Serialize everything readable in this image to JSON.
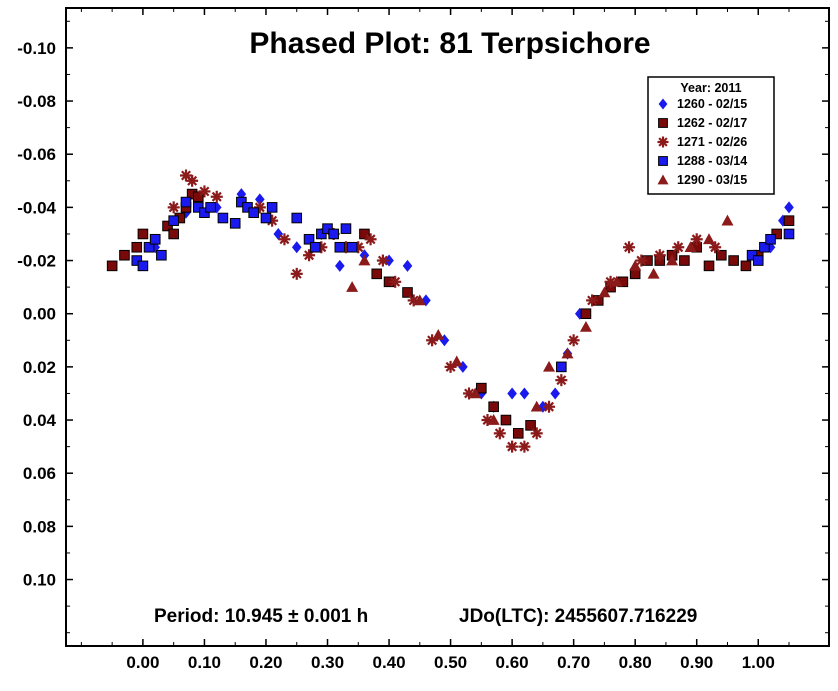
{
  "chart_data": {
    "type": "scatter",
    "title": "Phased Plot: 81 Terpsichore",
    "xlabel": "",
    "ylabel": "",
    "xlim": [
      -0.125,
      1.115
    ],
    "ylim": [
      0.125,
      -0.115
    ],
    "y_inverted": true,
    "grid": false,
    "x_ticks": [
      0.0,
      0.1,
      0.2,
      0.3,
      0.4,
      0.5,
      0.6,
      0.7,
      0.8,
      0.9,
      1.0
    ],
    "x_tick_labels": [
      "0.00",
      "0.10",
      "0.20",
      "0.30",
      "0.40",
      "0.50",
      "0.60",
      "0.70",
      "0.80",
      "0.90",
      "1.00"
    ],
    "y_ticks": [
      -0.1,
      -0.08,
      -0.06,
      -0.04,
      -0.02,
      0.0,
      0.02,
      0.04,
      0.06,
      0.08,
      0.1
    ],
    "y_tick_labels": [
      "-0.10",
      "-0.08",
      "-0.06",
      "-0.04",
      "-0.02",
      "0.00",
      "0.02",
      "0.04",
      "0.06",
      "0.08",
      "0.10"
    ],
    "legend": {
      "placement": "top-right",
      "title": "Year: 2011",
      "entries": [
        "1260 - 02/15",
        "1262 - 02/17",
        "1271 - 02/26",
        "1288 - 03/14",
        "1290 - 03/15"
      ]
    },
    "series": [
      {
        "name": "1260 - 02/15",
        "marker": "diamond",
        "color": "#1a1aee",
        "x": [
          0.02,
          0.07,
          0.12,
          0.16,
          0.19,
          0.22,
          0.25,
          0.29,
          0.32,
          0.36,
          0.4,
          0.43,
          0.46,
          0.49,
          0.52,
          0.55,
          0.57,
          0.6,
          0.62,
          0.65,
          0.67,
          0.69,
          0.71,
          1.02,
          1.04,
          1.05
        ],
        "y": [
          -0.025,
          -0.038,
          -0.04,
          -0.045,
          -0.043,
          -0.03,
          -0.025,
          -0.03,
          -0.018,
          -0.022,
          -0.02,
          -0.018,
          -0.005,
          0.01,
          0.02,
          0.03,
          0.035,
          0.03,
          0.03,
          0.035,
          0.03,
          0.015,
          0.0,
          -0.025,
          -0.035,
          -0.04
        ]
      },
      {
        "name": "1262 - 02/17",
        "marker": "square",
        "color": "#7a0a0a",
        "x": [
          -0.05,
          -0.03,
          -0.01,
          0.0,
          0.02,
          0.04,
          0.05,
          0.06,
          0.07,
          0.08,
          0.09,
          0.36,
          0.38,
          0.4,
          0.43,
          0.55,
          0.57,
          0.59,
          0.61,
          0.63,
          0.72,
          0.74,
          0.76,
          0.78,
          0.8,
          0.82,
          0.84,
          0.86,
          0.88,
          0.9,
          0.92,
          0.94,
          0.96,
          0.98,
          1.0,
          1.03,
          1.05
        ],
        "y": [
          -0.018,
          -0.022,
          -0.025,
          -0.03,
          -0.028,
          -0.033,
          -0.03,
          -0.036,
          -0.04,
          -0.045,
          -0.044,
          -0.03,
          -0.015,
          -0.012,
          -0.008,
          0.028,
          0.035,
          0.04,
          0.045,
          0.042,
          0.0,
          -0.005,
          -0.01,
          -0.012,
          -0.015,
          -0.02,
          -0.02,
          -0.022,
          -0.02,
          -0.025,
          -0.018,
          -0.022,
          -0.02,
          -0.018,
          -0.022,
          -0.03,
          -0.035
        ]
      },
      {
        "name": "1271 - 02/26",
        "marker": "asterisk",
        "color": "#8b1a1a",
        "x": [
          0.05,
          0.07,
          0.08,
          0.1,
          0.12,
          0.19,
          0.21,
          0.23,
          0.25,
          0.27,
          0.29,
          0.31,
          0.33,
          0.35,
          0.37,
          0.39,
          0.41,
          0.44,
          0.47,
          0.5,
          0.53,
          0.56,
          0.58,
          0.6,
          0.62,
          0.64,
          0.66,
          0.68,
          0.7,
          0.73,
          0.76,
          0.79,
          0.81,
          0.84,
          0.87,
          0.9,
          0.93
        ],
        "y": [
          -0.04,
          -0.052,
          -0.05,
          -0.046,
          -0.044,
          -0.04,
          -0.035,
          -0.028,
          -0.015,
          -0.022,
          -0.025,
          -0.03,
          -0.025,
          -0.025,
          -0.028,
          -0.02,
          -0.012,
          -0.005,
          0.01,
          0.02,
          0.03,
          0.04,
          0.045,
          0.05,
          0.05,
          0.045,
          0.035,
          0.025,
          0.01,
          -0.005,
          -0.012,
          -0.025,
          -0.02,
          -0.022,
          -0.025,
          -0.028,
          -0.025
        ]
      },
      {
        "name": "1288 - 03/14",
        "marker": "square",
        "color": "#1a1aee",
        "x": [
          -0.01,
          0.0,
          0.01,
          0.02,
          0.03,
          0.05,
          0.07,
          0.09,
          0.1,
          0.11,
          0.13,
          0.15,
          0.16,
          0.17,
          0.18,
          0.2,
          0.21,
          0.25,
          0.27,
          0.28,
          0.29,
          0.3,
          0.31,
          0.32,
          0.33,
          0.34,
          0.68,
          0.99,
          1.0,
          1.01,
          1.02,
          1.05
        ],
        "y": [
          -0.02,
          -0.018,
          -0.025,
          -0.028,
          -0.022,
          -0.035,
          -0.042,
          -0.04,
          -0.038,
          -0.04,
          -0.036,
          -0.034,
          -0.042,
          -0.04,
          -0.038,
          -0.036,
          -0.04,
          -0.036,
          -0.028,
          -0.025,
          -0.03,
          -0.032,
          -0.03,
          -0.025,
          -0.032,
          -0.025,
          0.02,
          -0.022,
          -0.02,
          -0.025,
          -0.028,
          -0.03
        ]
      },
      {
        "name": "1290 - 03/15",
        "marker": "triangle",
        "color": "#8b1a1a",
        "x": [
          0.34,
          0.36,
          0.45,
          0.48,
          0.51,
          0.54,
          0.57,
          0.64,
          0.66,
          0.69,
          0.72,
          0.75,
          0.77,
          0.8,
          0.83,
          0.86,
          0.89,
          0.92,
          0.95
        ],
        "y": [
          -0.01,
          -0.02,
          -0.005,
          0.008,
          0.018,
          0.03,
          0.04,
          0.035,
          0.02,
          0.015,
          0.005,
          -0.008,
          -0.012,
          -0.018,
          -0.015,
          -0.02,
          -0.025,
          -0.028,
          -0.035
        ]
      }
    ]
  },
  "footer": {
    "period": "Period: 10.945 ± 0.001 h",
    "epoch": "JDo(LTC): 2455607.716229"
  }
}
